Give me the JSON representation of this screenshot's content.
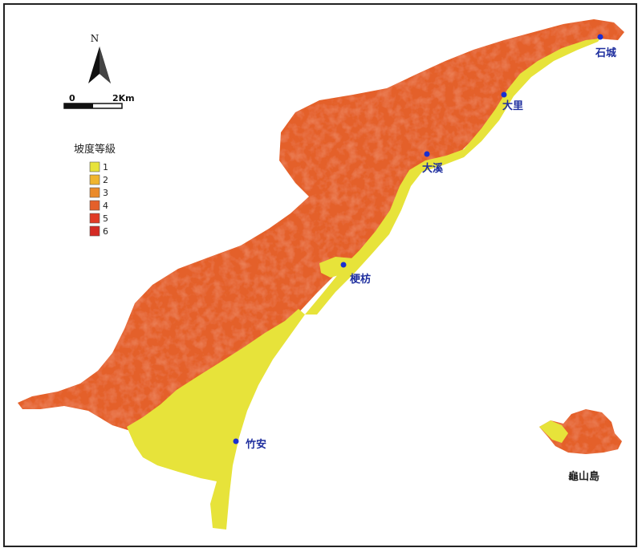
{
  "north": {
    "label": "N"
  },
  "scale": {
    "start_label": "0",
    "end_label": "2Km"
  },
  "legend": {
    "title": "坡度等級",
    "classes": [
      {
        "label": "1",
        "color": "#e7e33a"
      },
      {
        "label": "2",
        "color": "#f0b52e"
      },
      {
        "label": "3",
        "color": "#ea8a2a"
      },
      {
        "label": "4",
        "color": "#e4602a"
      },
      {
        "label": "5",
        "color": "#e03a26"
      },
      {
        "label": "6",
        "color": "#d42a24"
      }
    ]
  },
  "places": [
    {
      "label": "石城"
    },
    {
      "label": "大里"
    },
    {
      "label": "大溪"
    },
    {
      "label": "梗枋"
    },
    {
      "label": "竹安"
    },
    {
      "label": "龜山島"
    }
  ],
  "colors": {
    "marker": "#1a2fd0",
    "text": "#1f2f9f"
  }
}
